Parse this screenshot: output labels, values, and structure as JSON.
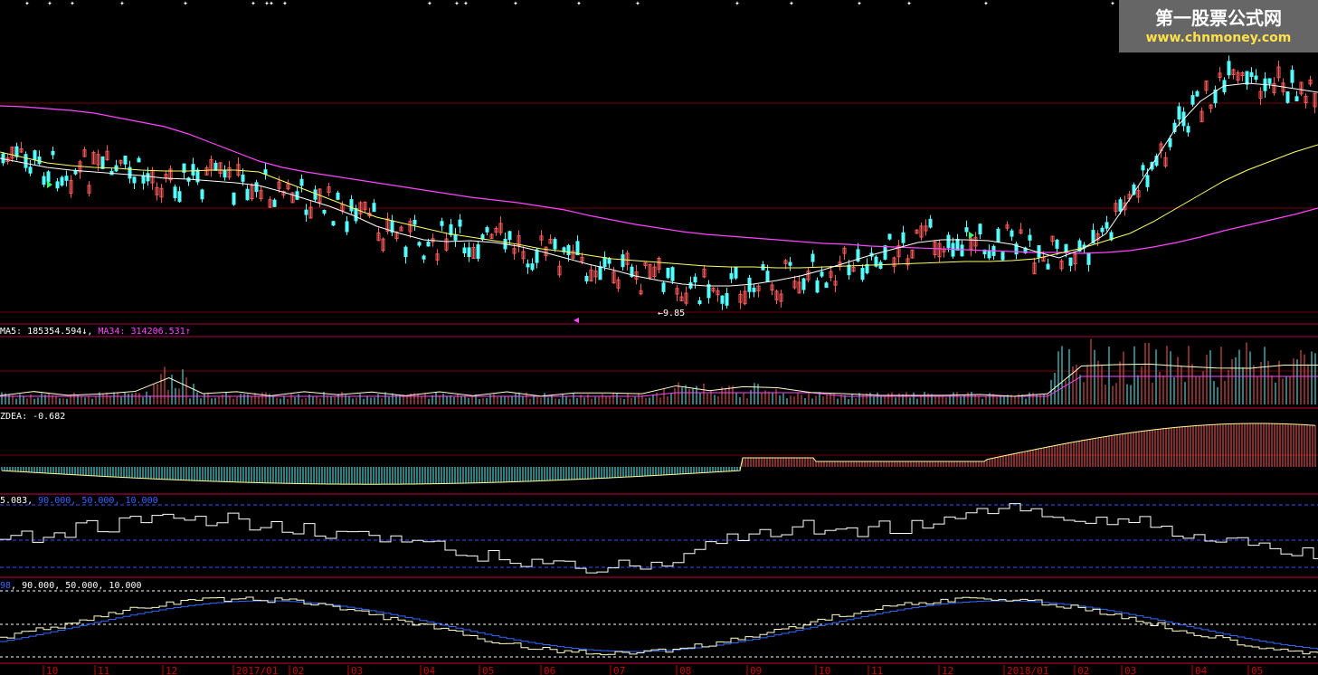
{
  "colors": {
    "background": "#000000",
    "up": "#ff5a5a",
    "down": "#54ffff",
    "ma_white": "#ffffff",
    "ma_yellow": "#ffff66",
    "ma_magenta": "#ff44ff",
    "grid": "#7a0000",
    "dash_blue": "#3355ff",
    "blue_line": "#3366ff"
  },
  "watermark": {
    "title": "第一股票公式网",
    "url": "www.chnmoney.com"
  },
  "price_panel": {
    "low_marker": "9.85",
    "ma_white_y": [
      175,
      180,
      185,
      188,
      190,
      192,
      194,
      197,
      198,
      200,
      202,
      205,
      212,
      220,
      228,
      238,
      250,
      258,
      265,
      267,
      266,
      268,
      272,
      278,
      285,
      292,
      298,
      305,
      310,
      314,
      316,
      316,
      314,
      310,
      305,
      298,
      290,
      282,
      275,
      268,
      265,
      265,
      266,
      270,
      278,
      285,
      275,
      258,
      220,
      180,
      140,
      112,
      95,
      92,
      94,
      98,
      102
    ],
    "ma_yellow_y": [
      168,
      174,
      180,
      183,
      185,
      186,
      188,
      189,
      189,
      188,
      188,
      190,
      200,
      210,
      220,
      230,
      240,
      246,
      252,
      258,
      262,
      266,
      270,
      275,
      278,
      282,
      286,
      288,
      290,
      292,
      294,
      295,
      295,
      296,
      296,
      295,
      294,
      293,
      292,
      291,
      290,
      289,
      289,
      288,
      286,
      280,
      274,
      266,
      258,
      245,
      230,
      215,
      200,
      188,
      178,
      168,
      160
    ],
    "ma_magenta_y": [
      117,
      118,
      120,
      122,
      125,
      130,
      135,
      140,
      148,
      158,
      168,
      178,
      185,
      190,
      194,
      198,
      202,
      206,
      210,
      214,
      218,
      221,
      224,
      228,
      232,
      238,
      243,
      248,
      252,
      256,
      259,
      261,
      263,
      265,
      267,
      269,
      270,
      272,
      273,
      274,
      275,
      276,
      277,
      278,
      279,
      279,
      280,
      279,
      277,
      273,
      268,
      262,
      255,
      249,
      243,
      237,
      230
    ]
  },
  "volume_panel": {
    "label_ma5": "MA5: 185354.594",
    "arrow_down": "↓",
    "label_ma34": "MA34: 314206.531",
    "arrow_up": "↑"
  },
  "zdea_panel": {
    "label": "ZDEA: -0.682"
  },
  "osc1_panel": {
    "label_value": "5.083",
    "label_levels": "90.000, 50.000, 10.000"
  },
  "osc2_panel": {
    "label_value": "98",
    "label_levels": "90.000, 50.000, 10.000"
  },
  "x_axis": {
    "ticks": [
      {
        "label": "10",
        "x": 48
      },
      {
        "label": "11",
        "x": 105
      },
      {
        "label": "12",
        "x": 180
      },
      {
        "label": "2017/01",
        "x": 258
      },
      {
        "label": "02",
        "x": 320
      },
      {
        "label": "03",
        "x": 385
      },
      {
        "label": "04",
        "x": 465
      },
      {
        "label": "05",
        "x": 530
      },
      {
        "label": "06",
        "x": 598
      },
      {
        "label": "07",
        "x": 675
      },
      {
        "label": "08",
        "x": 748
      },
      {
        "label": "09",
        "x": 826
      },
      {
        "label": "10",
        "x": 902
      },
      {
        "label": "11",
        "x": 960
      },
      {
        "label": "12",
        "x": 1038
      },
      {
        "label": "2018/01",
        "x": 1110
      },
      {
        "label": "02",
        "x": 1188
      },
      {
        "label": "03",
        "x": 1240
      },
      {
        "label": "04",
        "x": 1318
      },
      {
        "label": "05",
        "x": 1380
      }
    ]
  }
}
